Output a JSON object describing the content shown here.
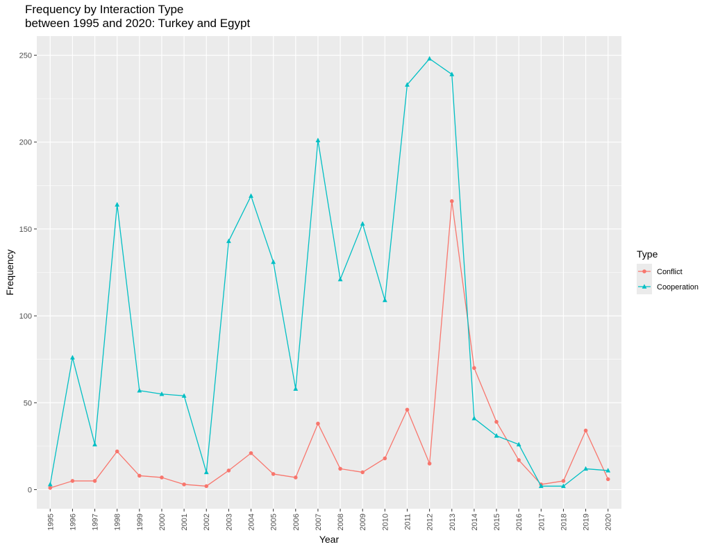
{
  "chart_data": {
    "type": "line",
    "title": [
      "Frequency by Interaction Type",
      "between 1995 and 2020: Turkey and Egypt"
    ],
    "xlabel": "Year",
    "ylabel": "Frequency",
    "ylim": [
      -11,
      261
    ],
    "y_ticks": [
      0,
      50,
      100,
      150,
      200,
      250
    ],
    "grid": true,
    "legend": {
      "title": "Type",
      "position": "right"
    },
    "categories": [
      "1995",
      "1996",
      "1997",
      "1998",
      "1999",
      "2000",
      "2001",
      "2002",
      "2003",
      "2004",
      "2005",
      "2006",
      "2007",
      "2008",
      "2009",
      "2010",
      "2011",
      "2012",
      "2013",
      "2014",
      "2015",
      "2016",
      "2017",
      "2018",
      "2019",
      "2020"
    ],
    "series": [
      {
        "name": "Conflict",
        "color": "#F8766D",
        "marker": "circle",
        "values": [
          1,
          5,
          5,
          22,
          8,
          7,
          3,
          2,
          11,
          21,
          9,
          7,
          38,
          12,
          10,
          18,
          46,
          15,
          166,
          70,
          39,
          17,
          3,
          5,
          34,
          6
        ]
      },
      {
        "name": "Cooperation",
        "color": "#00BFC4",
        "marker": "triangle",
        "values": [
          3,
          76,
          26,
          164,
          57,
          55,
          54,
          10,
          143,
          169,
          131,
          58,
          201,
          121,
          153,
          109,
          233,
          248,
          239,
          41,
          31,
          26,
          2,
          2,
          12,
          11
        ]
      }
    ]
  },
  "colors": {
    "panel": "#EBEBEB",
    "grid": "#FFFFFF",
    "tick": "#333333"
  }
}
